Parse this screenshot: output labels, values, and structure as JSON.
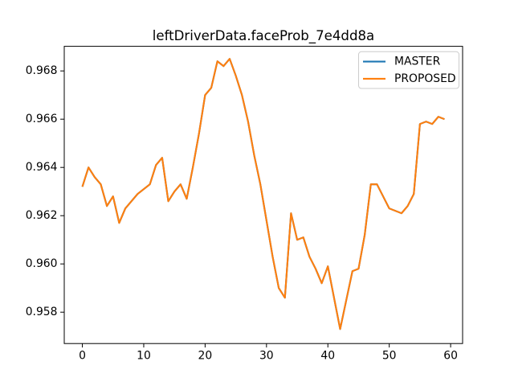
{
  "window": {
    "background": "#ffffff"
  },
  "chart_data": {
    "type": "line",
    "title": "leftDriverData.faceProb_7e4dd8a",
    "xlabel": "",
    "ylabel": "",
    "grid": false,
    "legend_position": "upper right",
    "x": [
      0,
      1,
      2,
      3,
      4,
      5,
      6,
      7,
      8,
      9,
      10,
      11,
      12,
      13,
      14,
      15,
      16,
      17,
      18,
      19,
      20,
      21,
      22,
      23,
      24,
      25,
      26,
      27,
      28,
      29,
      30,
      31,
      32,
      33,
      34,
      35,
      36,
      37,
      38,
      39,
      40,
      41,
      42,
      43,
      44,
      45,
      46,
      47,
      48,
      49,
      50,
      51,
      52,
      53,
      54,
      55,
      56,
      57,
      58,
      59
    ],
    "series": [
      {
        "name": "MASTER",
        "color": "#1f77b4",
        "values": [
          0.9632,
          0.964,
          0.9636,
          0.9633,
          0.9624,
          0.9628,
          0.9617,
          0.9623,
          0.9626,
          0.9629,
          0.9631,
          0.9633,
          0.9641,
          0.9644,
          0.9626,
          0.963,
          0.9633,
          0.9627,
          0.964,
          0.9654,
          0.967,
          0.9673,
          0.9684,
          0.9682,
          0.9685,
          0.9678,
          0.967,
          0.9659,
          0.9645,
          0.9633,
          0.9618,
          0.9603,
          0.959,
          0.9586,
          0.9621,
          0.961,
          0.9611,
          0.9603,
          0.9598,
          0.9592,
          0.9599,
          0.9586,
          0.9573,
          0.9585,
          0.9597,
          0.9598,
          0.9612,
          0.9633,
          0.9633,
          0.9628,
          0.9623,
          0.9622,
          0.9621,
          0.9624,
          0.9629,
          0.9658,
          0.9659,
          0.9658,
          0.9661,
          0.966
        ]
      },
      {
        "name": "PROPOSED",
        "color": "#ff7f0e",
        "values": [
          0.9632,
          0.964,
          0.9636,
          0.9633,
          0.9624,
          0.9628,
          0.9617,
          0.9623,
          0.9626,
          0.9629,
          0.9631,
          0.9633,
          0.9641,
          0.9644,
          0.9626,
          0.963,
          0.9633,
          0.9627,
          0.964,
          0.9654,
          0.967,
          0.9673,
          0.9684,
          0.9682,
          0.9685,
          0.9678,
          0.967,
          0.9659,
          0.9645,
          0.9633,
          0.9618,
          0.9603,
          0.959,
          0.9586,
          0.9621,
          0.961,
          0.9611,
          0.9603,
          0.9598,
          0.9592,
          0.9599,
          0.9586,
          0.9573,
          0.9585,
          0.9597,
          0.9598,
          0.9612,
          0.9633,
          0.9633,
          0.9628,
          0.9623,
          0.9622,
          0.9621,
          0.9624,
          0.9629,
          0.9658,
          0.9659,
          0.9658,
          0.9661,
          0.966
        ]
      }
    ],
    "x_ticks": [
      0,
      10,
      20,
      30,
      40,
      50,
      60
    ],
    "x_tick_labels": [
      "0",
      "10",
      "20",
      "30",
      "40",
      "50",
      "60"
    ],
    "y_ticks": [
      0.958,
      0.96,
      0.962,
      0.964,
      0.966,
      0.968
    ],
    "y_tick_labels": [
      "0.958",
      "0.960",
      "0.962",
      "0.964",
      "0.966",
      "0.968"
    ],
    "xlim": [
      -2.95,
      61.95
    ],
    "ylim": [
      0.9567,
      0.96902
    ]
  }
}
